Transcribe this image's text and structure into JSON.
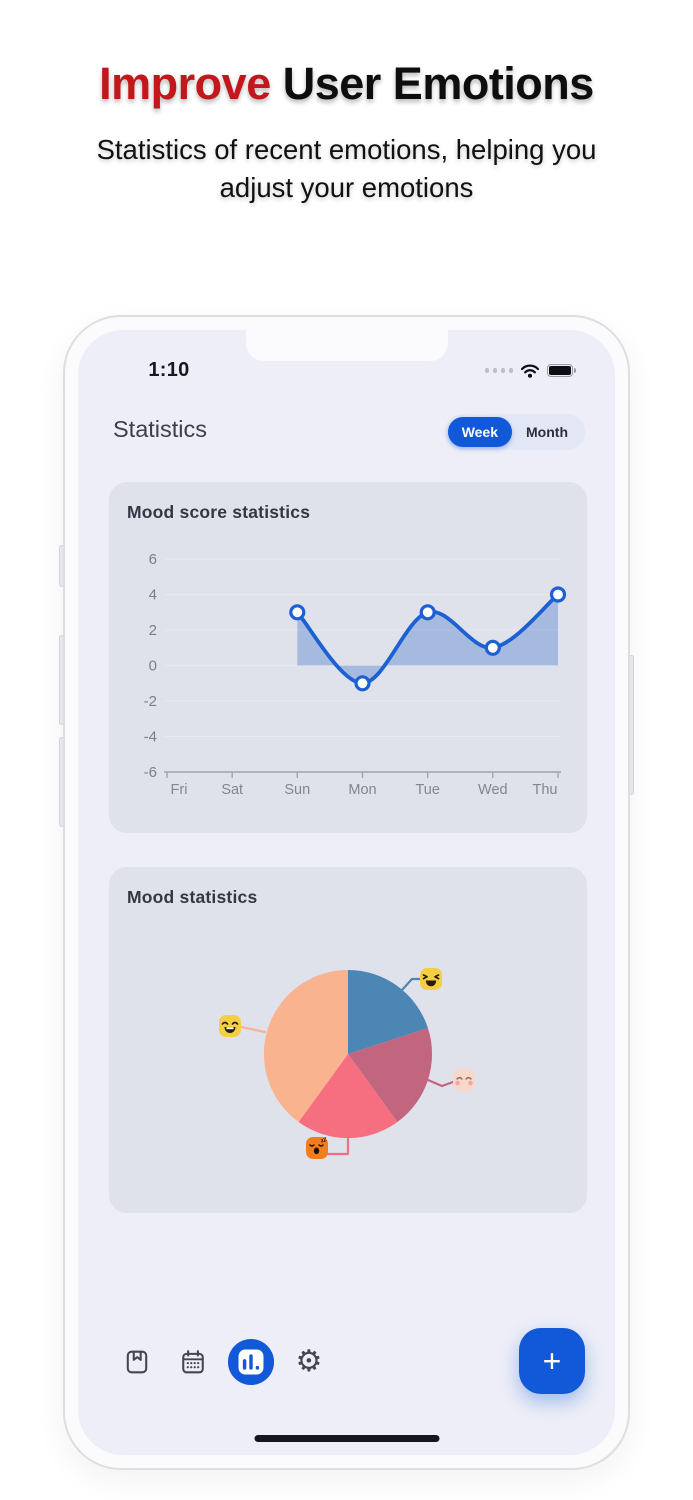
{
  "hero": {
    "title_accent": "Improve",
    "title_rest": " User Emotions",
    "subtitle": "Statistics of recent emotions, helping you adjust your emotions",
    "accent_color": "#c2181c"
  },
  "status_bar": {
    "time": "1:10",
    "icons": [
      "signal-dots",
      "wifi",
      "battery"
    ]
  },
  "app_header": {
    "title": "Statistics",
    "segmented": {
      "options": [
        "Week",
        "Month"
      ],
      "selected": "Week"
    }
  },
  "chart_data": [
    {
      "type": "line",
      "title": "Mood score statistics",
      "categories": [
        "Fri",
        "Sat",
        "Sun",
        "Mon",
        "Tue",
        "Wed",
        "Thu"
      ],
      "values": [
        null,
        null,
        3,
        -1,
        3,
        1,
        4
      ],
      "ylim": [
        -6,
        6
      ],
      "yticks": [
        6,
        4,
        2,
        0,
        -2,
        -4,
        -6
      ],
      "grid": true,
      "area_to_zero": true,
      "line_color": "#1c61d4",
      "marker": "circle-white",
      "fill_color": "#2f6bc9",
      "fill_opacity": 0.32,
      "axis_color": "#a0a4b0",
      "tick_label_color": "#82868f"
    },
    {
      "type": "pie",
      "title": "Mood statistics",
      "start_angle_deg": 0,
      "direction": "clockwise",
      "slices": [
        {
          "label": "laughing-mood",
          "value": 20,
          "color": "#4b86b5",
          "emoji": "laughing",
          "emoji_bg": "#f5ce42"
        },
        {
          "label": "blushing-mood",
          "value": 20,
          "color": "#c2657f",
          "emoji": "blushing",
          "emoji_bg": "#f8d8cb"
        },
        {
          "label": "yawning-mood",
          "value": 20,
          "color": "#f56f80",
          "emoji": "yawning",
          "emoji_bg": "#ee7e20"
        },
        {
          "label": "happy-mood",
          "value": 40,
          "color": "#f9b38f",
          "emoji": "happy",
          "emoji_bg": "#f5ce42"
        }
      ],
      "legend": "emoji-callouts"
    }
  ],
  "nav": {
    "items": [
      {
        "name": "journal",
        "active": false
      },
      {
        "name": "calendar",
        "active": false
      },
      {
        "name": "statistics",
        "active": true
      },
      {
        "name": "settings",
        "active": false
      }
    ],
    "fab_label": "+",
    "accent_color": "#1159d9"
  }
}
